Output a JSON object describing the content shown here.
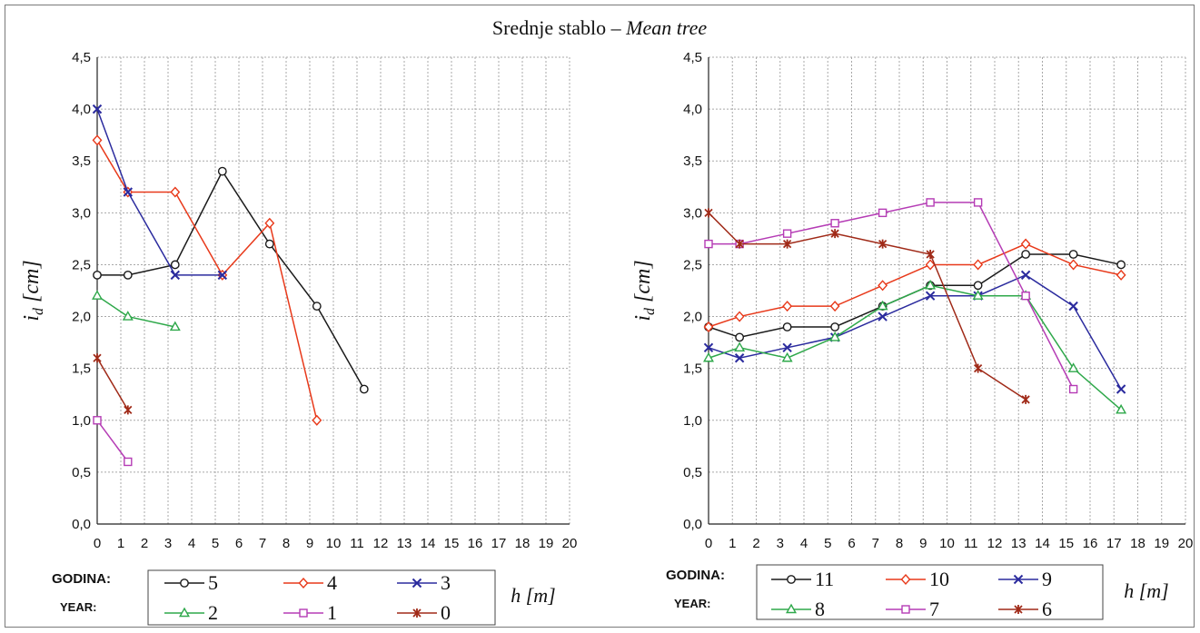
{
  "figure": {
    "title_plain": "Srednje stablo – ",
    "title_italic": "Mean tree",
    "legend_label_1": "GODINA:",
    "legend_label_2": "YEAR:"
  },
  "colors": {
    "black": "#1a1a1a",
    "red": "#e8391a",
    "blue": "#2b2b9e",
    "green": "#2ea84a",
    "magenta": "#b53cb5",
    "darkred": "#a02a18",
    "grid": "#a8a8a8"
  },
  "chart_data": [
    {
      "type": "line",
      "xlabel": "h [m]",
      "ylabel": "i_d [cm]",
      "ylim": [
        0,
        4.5
      ],
      "xlim": [
        0,
        20
      ],
      "y_ticks": [
        "0,0",
        "0,5",
        "1,0",
        "1,5",
        "2,0",
        "2,5",
        "3,0",
        "3,5",
        "4,0",
        "4,5"
      ],
      "x_ticks": [
        "0",
        "1",
        "2",
        "3",
        "4",
        "5",
        "6",
        "7",
        "8",
        "9",
        "10",
        "11",
        "12",
        "13",
        "14",
        "15",
        "16",
        "17",
        "18",
        "19",
        "20"
      ],
      "grid": true,
      "legend_position": "bottom",
      "series": [
        {
          "name": "5",
          "color": "black",
          "marker": "circle",
          "x": [
            0,
            1.3,
            3.3,
            5.3,
            7.3,
            9.3,
            11.3
          ],
          "y": [
            2.4,
            2.4,
            2.5,
            3.4,
            2.7,
            2.1,
            1.3
          ]
        },
        {
          "name": "4",
          "color": "red",
          "marker": "diamond",
          "x": [
            0,
            1.3,
            3.3,
            5.3,
            7.3,
            9.3
          ],
          "y": [
            3.7,
            3.2,
            3.2,
            2.4,
            2.9,
            1.0
          ]
        },
        {
          "name": "3",
          "color": "blue",
          "marker": "x",
          "x": [
            0,
            1.3,
            3.3,
            5.3
          ],
          "y": [
            4.0,
            3.2,
            2.4,
            2.4
          ]
        },
        {
          "name": "2",
          "color": "green",
          "marker": "triangle",
          "x": [
            0,
            1.3,
            3.3
          ],
          "y": [
            2.2,
            2.0,
            1.9
          ]
        },
        {
          "name": "1",
          "color": "magenta",
          "marker": "square",
          "x": [
            0,
            1.3
          ],
          "y": [
            1.0,
            0.6
          ]
        },
        {
          "name": "0",
          "color": "darkred",
          "marker": "star",
          "x": [
            0,
            1.3
          ],
          "y": [
            1.6,
            1.1
          ]
        }
      ]
    },
    {
      "type": "line",
      "xlabel": "h [m]",
      "ylabel": "i_d [cm]",
      "ylim": [
        0,
        4.5
      ],
      "xlim": [
        0,
        20
      ],
      "y_ticks": [
        "0,0",
        "0,5",
        "1,0",
        "1,5",
        "2,0",
        "2,5",
        "3,0",
        "3,5",
        "4,0",
        "4,5"
      ],
      "x_ticks": [
        "0",
        "1",
        "2",
        "3",
        "4",
        "5",
        "6",
        "7",
        "8",
        "9",
        "10",
        "11",
        "12",
        "13",
        "14",
        "15",
        "16",
        "17",
        "18",
        "19",
        "20"
      ],
      "grid": true,
      "legend_position": "bottom",
      "series": [
        {
          "name": "11",
          "color": "black",
          "marker": "circle",
          "x": [
            0,
            1.3,
            3.3,
            5.3,
            7.3,
            9.3,
            11.3,
            13.3,
            15.3,
            17.3
          ],
          "y": [
            1.9,
            1.8,
            1.9,
            1.9,
            2.1,
            2.3,
            2.3,
            2.6,
            2.6,
            2.5
          ]
        },
        {
          "name": "10",
          "color": "red",
          "marker": "diamond",
          "x": [
            0,
            1.3,
            3.3,
            5.3,
            7.3,
            9.3,
            11.3,
            13.3,
            15.3,
            17.3
          ],
          "y": [
            1.9,
            2.0,
            2.1,
            2.1,
            2.3,
            2.5,
            2.5,
            2.7,
            2.5,
            2.4
          ]
        },
        {
          "name": "9",
          "color": "blue",
          "marker": "x",
          "x": [
            0,
            1.3,
            3.3,
            5.3,
            7.3,
            9.3,
            11.3,
            13.3,
            15.3,
            17.3
          ],
          "y": [
            1.7,
            1.6,
            1.7,
            1.8,
            2.0,
            2.2,
            2.2,
            2.4,
            2.1,
            1.3
          ]
        },
        {
          "name": "8",
          "color": "green",
          "marker": "triangle",
          "x": [
            0,
            1.3,
            3.3,
            5.3,
            7.3,
            9.3,
            11.3,
            13.3,
            15.3,
            17.3
          ],
          "y": [
            1.6,
            1.7,
            1.6,
            1.8,
            2.1,
            2.3,
            2.2,
            2.2,
            1.5,
            1.1
          ]
        },
        {
          "name": "7",
          "color": "magenta",
          "marker": "square",
          "x": [
            0,
            1.3,
            3.3,
            5.3,
            7.3,
            9.3,
            11.3,
            13.3,
            15.3
          ],
          "y": [
            2.7,
            2.7,
            2.8,
            2.9,
            3.0,
            3.1,
            3.1,
            2.2,
            1.3
          ]
        },
        {
          "name": "6",
          "color": "darkred",
          "marker": "star",
          "x": [
            0,
            1.3,
            3.3,
            5.3,
            7.3,
            9.3,
            11.3,
            13.3
          ],
          "y": [
            3.0,
            2.7,
            2.7,
            2.8,
            2.7,
            2.6,
            1.5,
            1.2
          ]
        }
      ]
    }
  ]
}
